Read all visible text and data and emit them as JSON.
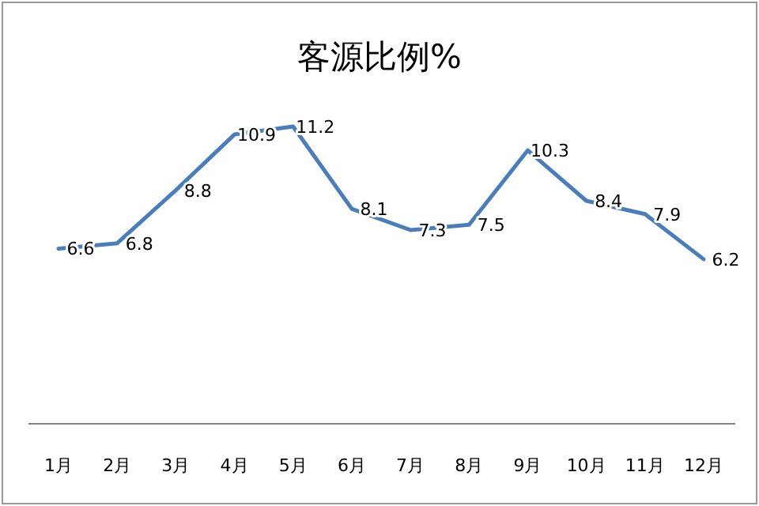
{
  "chart_data": {
    "type": "line",
    "title": "客源比例%",
    "categories": [
      "1月",
      "2月",
      "3月",
      "4月",
      "5月",
      "6月",
      "7月",
      "8月",
      "9月",
      "10月",
      "11月",
      "12月"
    ],
    "series": [
      {
        "color": "#4a7ebb",
        "values": [
          6.6,
          6.8,
          8.8,
          10.9,
          11.2,
          8.1,
          7.3,
          7.5,
          10.3,
          8.4,
          7.9,
          6.2
        ]
      }
    ],
    "data_labels": true,
    "marker": "none",
    "line_style": "solid"
  }
}
